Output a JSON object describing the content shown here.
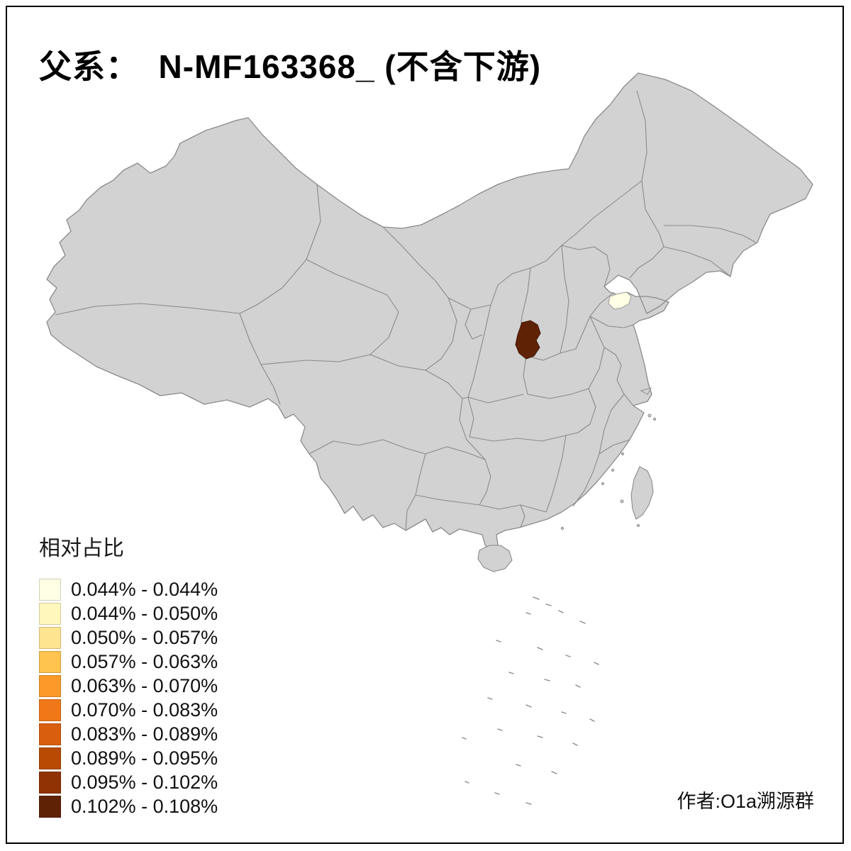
{
  "page": {
    "title": "父系：  N-MF163368_ (不含下游)",
    "credit": "作者:O1a溯源群"
  },
  "legend": {
    "title": "相对占比",
    "items": [
      {
        "label": "0.044% - 0.044%",
        "color": "#FFFFE5"
      },
      {
        "label": "0.044% - 0.050%",
        "color": "#FFF7BC"
      },
      {
        "label": "0.050% - 0.057%",
        "color": "#FEE391"
      },
      {
        "label": "0.057% - 0.063%",
        "color": "#FEC44F"
      },
      {
        "label": "0.063% - 0.070%",
        "color": "#FB9A29"
      },
      {
        "label": "0.070% - 0.083%",
        "color": "#F07818"
      },
      {
        "label": "0.083% - 0.089%",
        "color": "#D95F0E"
      },
      {
        "label": "0.089% - 0.095%",
        "color": "#B84A03"
      },
      {
        "label": "0.095% - 0.102%",
        "color": "#8F3204"
      },
      {
        "label": "0.102% - 0.108%",
        "color": "#602205"
      }
    ]
  },
  "map": {
    "base_fill": "#D2D2D2",
    "border_color": "#8A8A8A",
    "background": "#FFFFFF",
    "highlights": [
      {
        "name": "region-darkest",
        "range": "0.102% - 0.108%",
        "color": "#602205"
      },
      {
        "name": "region-palest",
        "range": "0.044% - 0.044%",
        "color": "#FFFFE5"
      }
    ]
  },
  "chart_data": {
    "type": "choropleth_map",
    "title": "父系：  N-MF163368_ (不含下游)",
    "legend_title": "相对占比",
    "classes": [
      "0.044% - 0.044%",
      "0.044% - 0.050%",
      "0.050% - 0.057%",
      "0.057% - 0.063%",
      "0.063% - 0.070%",
      "0.070% - 0.083%",
      "0.083% - 0.089%",
      "0.089% - 0.095%",
      "0.095% - 0.102%",
      "0.102% - 0.108%"
    ],
    "highlighted_regions": [
      {
        "location": "central China (southwest Shanxi area)",
        "class": "0.102% - 0.108%"
      },
      {
        "location": "northern Shandong coast",
        "class": "0.044% - 0.044%"
      }
    ]
  }
}
